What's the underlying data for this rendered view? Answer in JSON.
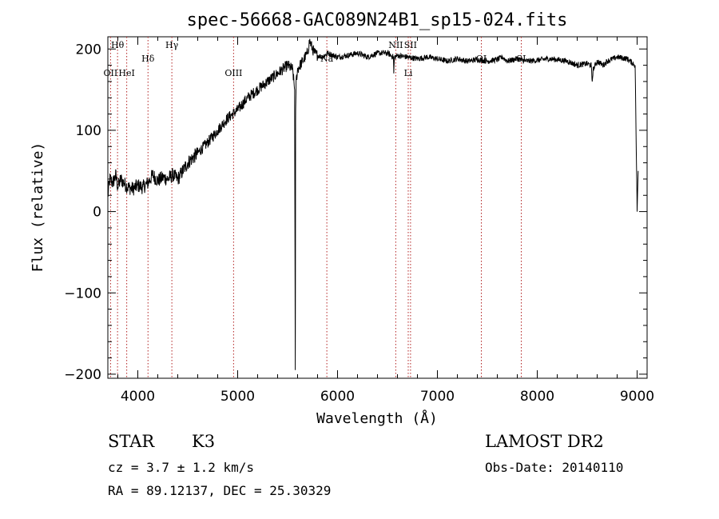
{
  "chart_data": {
    "type": "line",
    "title": "spec-56668-GAC089N24B1_sp15-024.fits",
    "xlabel": "Wavelength (Å)",
    "ylabel": "Flux (relative)",
    "xlim": [
      3700,
      9100
    ],
    "ylim": [
      -205,
      215
    ],
    "xticks": [
      4000,
      5000,
      6000,
      7000,
      8000,
      9000
    ],
    "yticks": [
      -200,
      -100,
      0,
      100,
      200
    ],
    "xtick_labels": [
      "4000",
      "5000",
      "6000",
      "7000",
      "8000",
      "9000"
    ],
    "ytick_labels": [
      "−200",
      "−100",
      "0",
      "100",
      "200"
    ],
    "grid": false,
    "series": [
      {
        "x": [
          3700,
          3720,
          3750,
          3780,
          3800,
          3830,
          3860,
          3900,
          3950,
          4000,
          4050,
          4100,
          4150,
          4200,
          4250,
          4300,
          4350,
          4400,
          4450,
          4500,
          4600,
          4700,
          4800,
          4900,
          5000,
          5100,
          5200,
          5300,
          5400,
          5500,
          5550,
          5570,
          5577,
          5580,
          5585,
          5600,
          5650,
          5700,
          5720,
          5750,
          5770,
          5800,
          5850,
          5900,
          6000,
          6100,
          6200,
          6300,
          6400,
          6500,
          6560,
          6563,
          6570,
          6600,
          6700,
          6800,
          6900,
          7000,
          7100,
          7200,
          7300,
          7400,
          7500,
          7600,
          7650,
          7700,
          7800,
          7900,
          8000,
          8100,
          8200,
          8300,
          8400,
          8500,
          8540,
          8550,
          8560,
          8600,
          8660,
          8700,
          8800,
          8900,
          8980,
          9000,
          9010
        ],
        "y": [
          20,
          40,
          35,
          45,
          30,
          40,
          35,
          30,
          28,
          32,
          30,
          35,
          45,
          38,
          42,
          40,
          45,
          40,
          50,
          60,
          72,
          85,
          100,
          115,
          125,
          140,
          150,
          160,
          170,
          180,
          175,
          150,
          -195,
          110,
          160,
          175,
          185,
          195,
          210,
          200,
          195,
          192,
          190,
          195,
          190,
          192,
          195,
          190,
          195,
          195,
          190,
          170,
          190,
          192,
          190,
          188,
          190,
          188,
          185,
          188,
          185,
          187,
          185,
          187,
          190,
          185,
          188,
          185,
          186,
          188,
          187,
          185,
          180,
          182,
          180,
          160,
          175,
          185,
          180,
          185,
          190,
          188,
          180,
          0,
          50
        ]
      }
    ],
    "lines": [
      {
        "name": "OII",
        "x": 3727,
        "row": 2
      },
      {
        "name": "Hθ",
        "x": 3797,
        "row": 0
      },
      {
        "name": "HeI",
        "x": 3889,
        "row": 2
      },
      {
        "name": "Hδ",
        "x": 4102,
        "row": 1
      },
      {
        "name": "Hγ",
        "x": 4341,
        "row": 0
      },
      {
        "name": "OIII",
        "x": 4959,
        "row": 2
      },
      {
        "name": "Na",
        "x": 5893,
        "row": 1
      },
      {
        "name": "NII",
        "x": 6583,
        "row": 0
      },
      {
        "name": "Li",
        "x": 6708,
        "row": 2
      },
      {
        "name": "SII",
        "x": 6731,
        "row": 0
      },
      {
        "name": "OI",
        "x": 7440,
        "row": 1
      },
      {
        "name": "SI",
        "x": 7840,
        "row": 1
      }
    ]
  },
  "info": {
    "object_class": "STAR",
    "subclass": "K3",
    "survey": "LAMOST DR2",
    "cz": "cz = 3.7 ± 1.2 km/s",
    "obs_date": "Obs-Date: 20140110",
    "coords": "RA =  89.12137, DEC =  25.30329"
  }
}
